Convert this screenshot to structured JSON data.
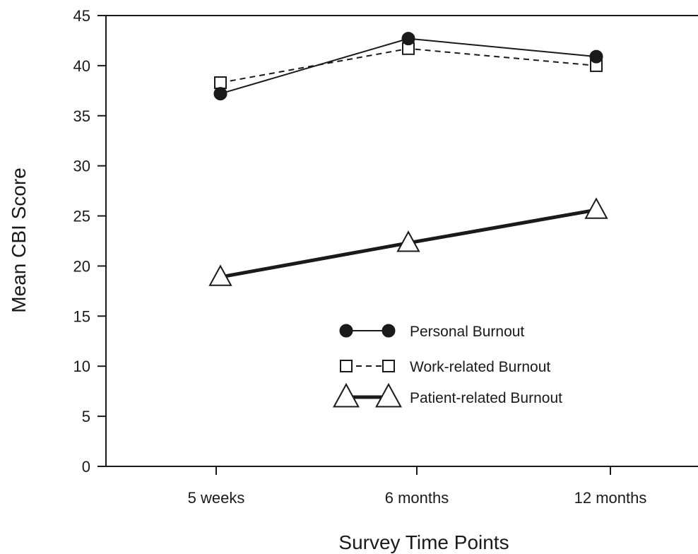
{
  "chart_data": {
    "type": "line",
    "title": "",
    "xlabel": "Survey Time Points",
    "ylabel": "Mean CBI Score",
    "categories": [
      "5 weeks",
      "6 months",
      "12 months"
    ],
    "ylim": [
      0,
      45
    ],
    "yticks": [
      0,
      5,
      10,
      15,
      20,
      25,
      30,
      35,
      40,
      45
    ],
    "grid": false,
    "legend_position": "lower-right inside",
    "series": [
      {
        "name": "Personal Burnout",
        "values": [
          37.2,
          42.7,
          40.9
        ],
        "marker": "filled-circle",
        "line_style": "solid",
        "color": "#1a1a1a"
      },
      {
        "name": "Work-related Burnout",
        "values": [
          38.3,
          41.7,
          40.0
        ],
        "marker": "open-square",
        "line_style": "dashed",
        "color": "#1a1a1a"
      },
      {
        "name": "Patient-related Burnout",
        "values": [
          18.9,
          22.3,
          25.6
        ],
        "marker": "open-triangle",
        "line_style": "thick-solid",
        "color": "#1a1a1a"
      }
    ]
  }
}
